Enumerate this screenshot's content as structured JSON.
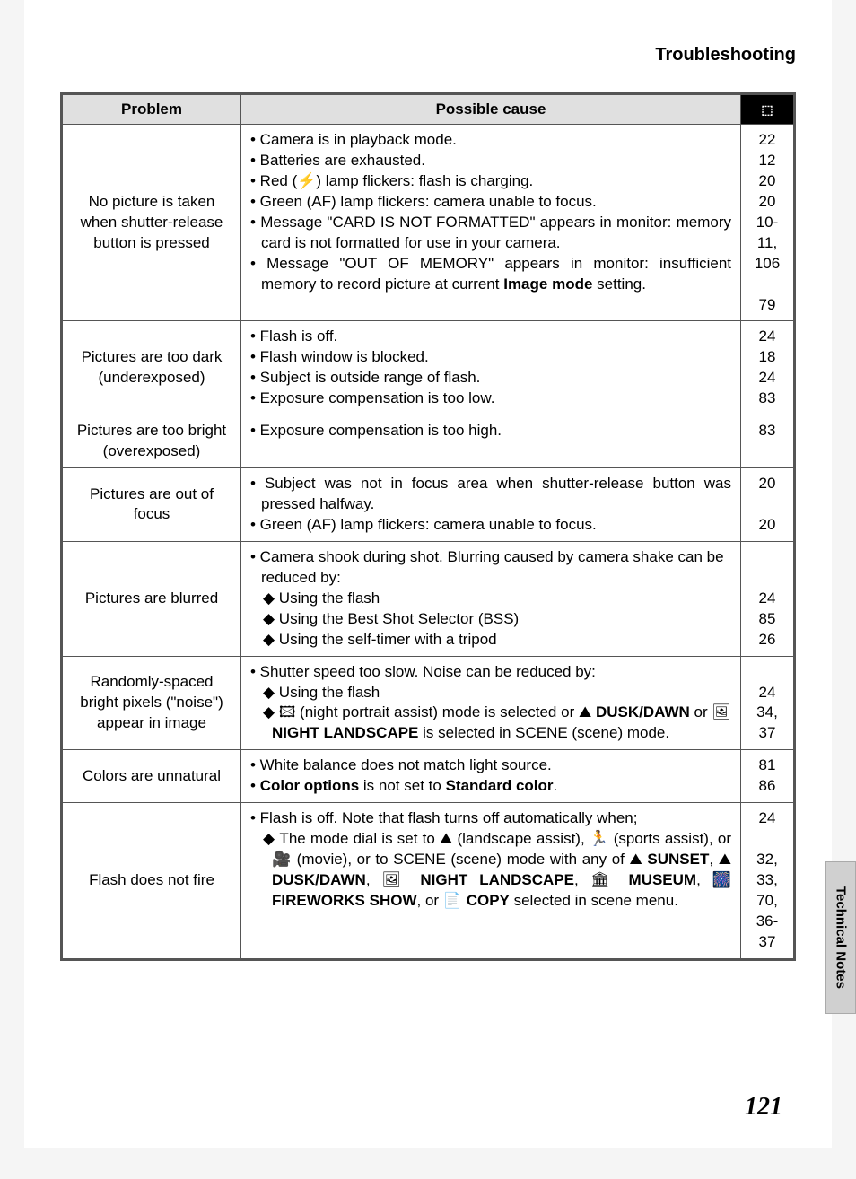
{
  "header": {
    "title": "Troubleshooting"
  },
  "sideTab": {
    "label": "Technical Notes"
  },
  "pageNumber": "121",
  "table": {
    "columns": [
      "Problem",
      "Possible cause",
      "⬚"
    ],
    "rows": [
      {
        "problem": "No picture is taken when shutter-release button is pressed",
        "causes": [
          "• Camera is in playback mode.",
          "• Batteries are exhausted.",
          "• Red (⚡) lamp flickers: flash is charging.",
          "• Green (AF) lamp flickers: camera unable to focus.",
          "• Message \"CARD IS NOT FORMATTED\" appears in monitor: memory card is not formatted for use in your camera.",
          "• Message \"OUT OF MEMORY\" appears in monitor: insufficient memory to record picture at current Image mode setting."
        ],
        "causes_bold": [
          null,
          null,
          null,
          null,
          null,
          [
            "Image mode"
          ]
        ],
        "justify": [
          false,
          false,
          false,
          false,
          true,
          true
        ],
        "pages": "22\n12\n20\n20\n10-11, 106\n\n79"
      },
      {
        "problem": "Pictures are too dark (underexposed)",
        "causes": [
          "• Flash is off.",
          "• Flash window is blocked.",
          "• Subject is outside range of flash.",
          "• Exposure compensation is too low."
        ],
        "pages": "24\n18\n24\n83"
      },
      {
        "problem": "Pictures are too bright (overexposed)",
        "causes": [
          "• Exposure compensation is too high."
        ],
        "pages": "83"
      },
      {
        "problem": "Pictures are out of focus",
        "causes": [
          "• Subject was not in focus area when shutter-release button was pressed halfway.",
          "• Green (AF) lamp flickers: camera unable to focus."
        ],
        "justify": [
          true,
          false
        ],
        "pages": "20\n\n20"
      },
      {
        "problem": "Pictures are blurred",
        "causes": [
          "• Camera shook during shot. Blurring caused by camera shake can be reduced by:",
          "  ◆ Using the flash",
          "  ◆ Using the Best Shot Selector (BSS)",
          "  ◆ Using the self-timer with a tripod"
        ],
        "sub": [
          false,
          true,
          true,
          true
        ],
        "pages": "\n\n24\n85\n26"
      },
      {
        "problem": "Randomly-spaced bright pixels (\"noise\") appear in image",
        "causes": [
          "• Shutter speed too slow. Noise can be reduced by:",
          "  ◆ Using the flash",
          "  ◆ 🖾 (night portrait assist) mode is selected or ⛰ DUSK/DAWN or 🖼 NIGHT LANDSCAPE is selected in SCENE (scene) mode."
        ],
        "sub": [
          false,
          true,
          true
        ],
        "causes_bold": [
          null,
          null,
          [
            "DUSK/DAWN",
            "NIGHT LANDSCAPE"
          ]
        ],
        "justify": [
          false,
          false,
          true
        ],
        "pages": "\n24\n34, 37"
      },
      {
        "problem": "Colors are unnatural",
        "causes": [
          "• White balance does not match light source.",
          "• Color options is not set to Standard color."
        ],
        "causes_bold": [
          null,
          [
            "Color options",
            "Standard color"
          ]
        ],
        "pages": "81\n86"
      },
      {
        "problem": "Flash does not fire",
        "causes": [
          "• Flash is off. Note that flash turns off automatically when;",
          "  ◆ The mode dial is set to ⛰ (landscape assist), 🏃 (sports assist), or 🎥 (movie), or to SCENE (scene) mode with any of ⛰ SUNSET, ⛰ DUSK/DAWN, 🖼 NIGHT LANDSCAPE, 🏛 MUSEUM, 🎆 FIREWORKS SHOW, or 📄 COPY selected in scene menu."
        ],
        "sub": [
          false,
          true
        ],
        "causes_bold": [
          null,
          [
            "SUNSET",
            "DUSK/DAWN",
            "NIGHT LANDSCAPE",
            "MUSEUM",
            "FIREWORKS SHOW",
            "COPY"
          ]
        ],
        "justify": [
          true,
          true
        ],
        "pages": "24\n\n32, 33, 70, 36-37"
      }
    ]
  }
}
